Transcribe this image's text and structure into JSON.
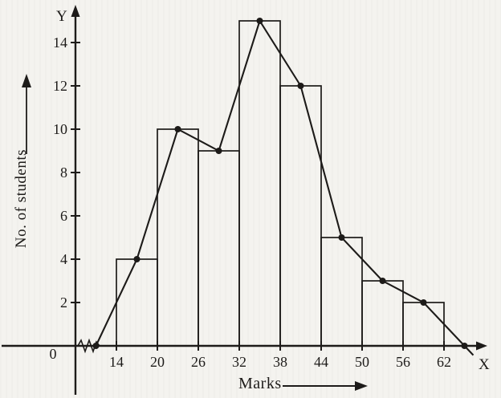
{
  "figure": {
    "background": "#f4f3ef",
    "ink": "#1d1b19"
  },
  "chart_data": {
    "type": "bar",
    "subtype": "histogram-with-frequency-polygon",
    "title": "",
    "xlabel": "Marks",
    "ylabel": "No. of students",
    "x_axis_letter": "X",
    "y_axis_letter": "Y",
    "origin_label": "0",
    "categories": [
      "14-20",
      "20-26",
      "26-32",
      "32-38",
      "38-44",
      "44-50",
      "50-56",
      "56-62"
    ],
    "class_boundaries": [
      14,
      20,
      26,
      32,
      38,
      44,
      50,
      56,
      62
    ],
    "frequencies": [
      4,
      10,
      9,
      15,
      12,
      5,
      3,
      2
    ],
    "x_ticks": [
      14,
      20,
      26,
      32,
      38,
      44,
      50,
      56,
      62
    ],
    "y_ticks": [
      2,
      4,
      6,
      8,
      10,
      12,
      14
    ],
    "xlim": [
      8,
      68
    ],
    "ylim": [
      0,
      15.5
    ],
    "frequency_polygon": {
      "x": [
        11,
        17,
        23,
        29,
        35,
        41,
        47,
        53,
        59,
        65
      ],
      "y": [
        0,
        4,
        10,
        9,
        15,
        12,
        5,
        3,
        2,
        0
      ]
    },
    "axis_break_near_origin": true,
    "grid": false,
    "legend": null
  }
}
